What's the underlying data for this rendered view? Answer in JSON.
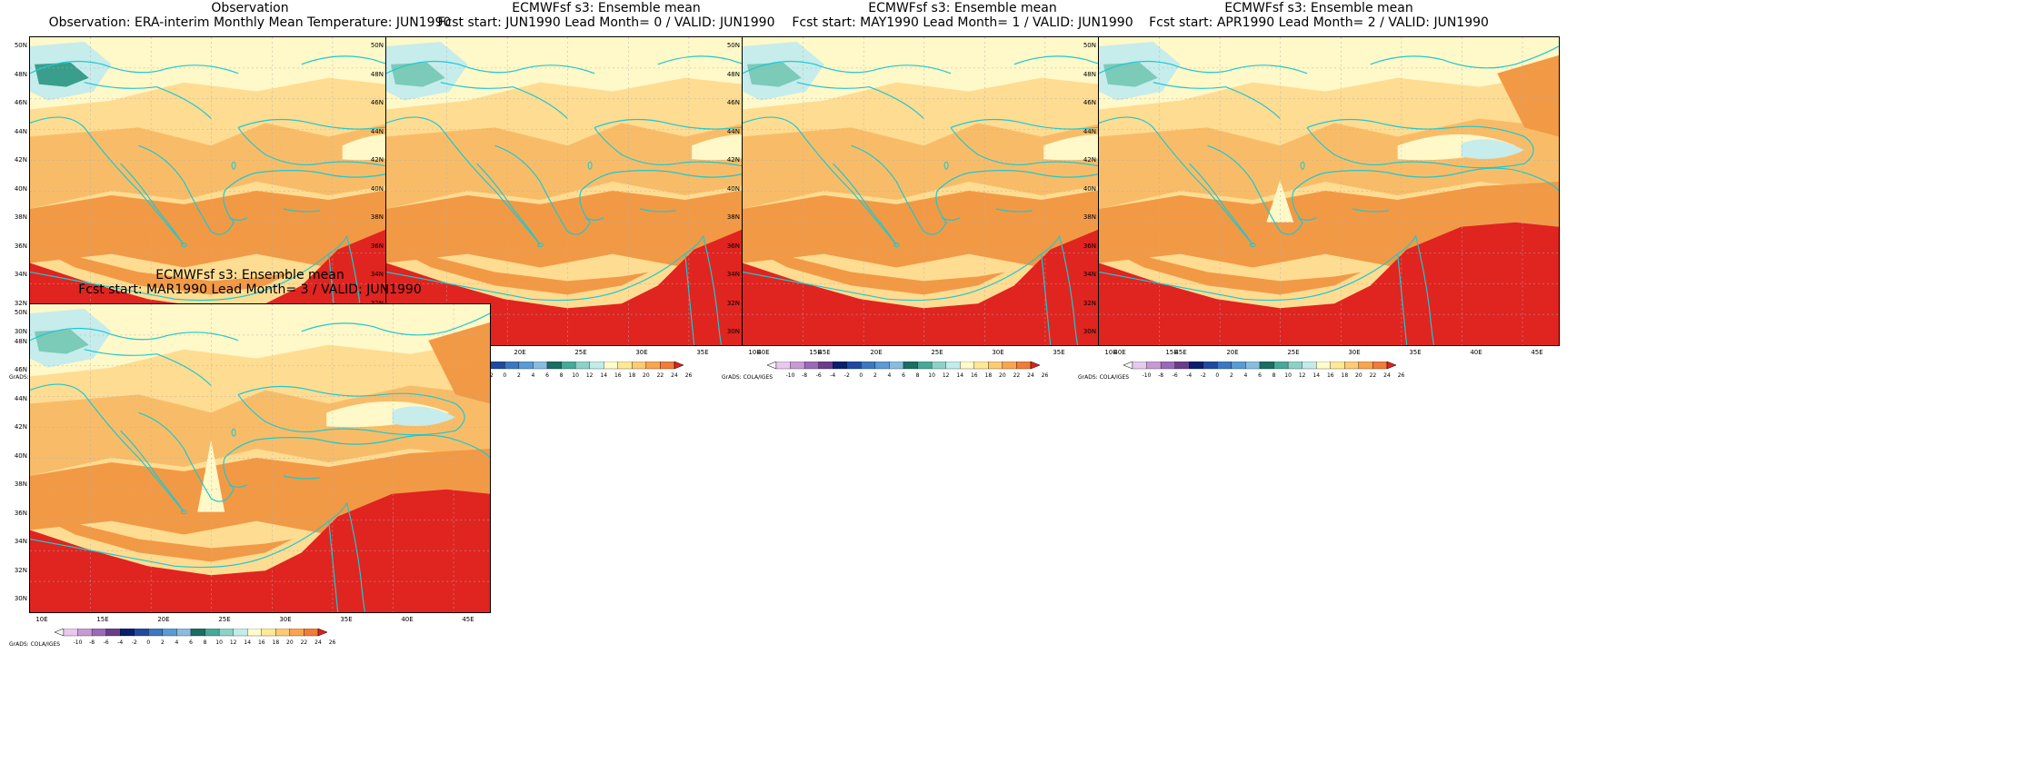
{
  "panels": [
    {
      "title1": "Observation",
      "title2": "Observation: ERA-interim Monthly Mean Temperature: JUN1990",
      "variant": 0
    },
    {
      "title1": "ECMWFsf s3: Ensemble mean",
      "title2": "Fcst start: JUN1990  Lead Month= 0 / VALID: JUN1990",
      "variant": 1
    },
    {
      "title1": "ECMWFsf s3: Ensemble mean",
      "title2": "Fcst start: MAY1990  Lead Month= 1 / VALID: JUN1990",
      "variant": 2
    },
    {
      "title1": "ECMWFsf s3: Ensemble mean",
      "title2": "Fcst start: APR1990  Lead Month= 2 / VALID: JUN1990",
      "variant": 3
    },
    {
      "title1": "ECMWFsf s3: Ensemble mean",
      "title2": "Fcst start: MAR1990  Lead Month= 3 / VALID: JUN1990",
      "variant": 4
    }
  ],
  "lat_labels": [
    "50N",
    "48N",
    "46N",
    "44N",
    "42N",
    "40N",
    "38N",
    "36N",
    "34N",
    "32N",
    "30N"
  ],
  "lon_labels": [
    "10E",
    "15E",
    "20E",
    "25E",
    "30E",
    "35E",
    "40E",
    "45E"
  ],
  "colorbar": {
    "labels": [
      "-10",
      "-8",
      "-6",
      "-4",
      "-2",
      "0",
      "2",
      "4",
      "6",
      "8",
      "10",
      "12",
      "14",
      "16",
      "18",
      "20",
      "22",
      "24",
      "26"
    ],
    "colors": [
      "#f7f7f7",
      "#e8c8ee",
      "#c89ad4",
      "#9a6ab8",
      "#6a3d8a",
      "#0a1f6e",
      "#1f4aa0",
      "#3b78c0",
      "#5b9bd4",
      "#88bde0",
      "#1a6e64",
      "#48a89a",
      "#8cd2c8",
      "#c2ece8",
      "#fffccc",
      "#ffe896",
      "#fdcb73",
      "#f9a550",
      "#f07c3a",
      "#e02020"
    ],
    "credit": "GrADS: COLA/IGES"
  },
  "colors": {
    "coast": "#1ec8d0",
    "hot": "#e02420",
    "warm": "#f29945",
    "mid": "#f8bc68",
    "mild": "#fedc92",
    "pale": "#fff8c8",
    "cool": "#c6ecec",
    "teal": "#7ccab8",
    "deep": "#3a9e8c"
  }
}
